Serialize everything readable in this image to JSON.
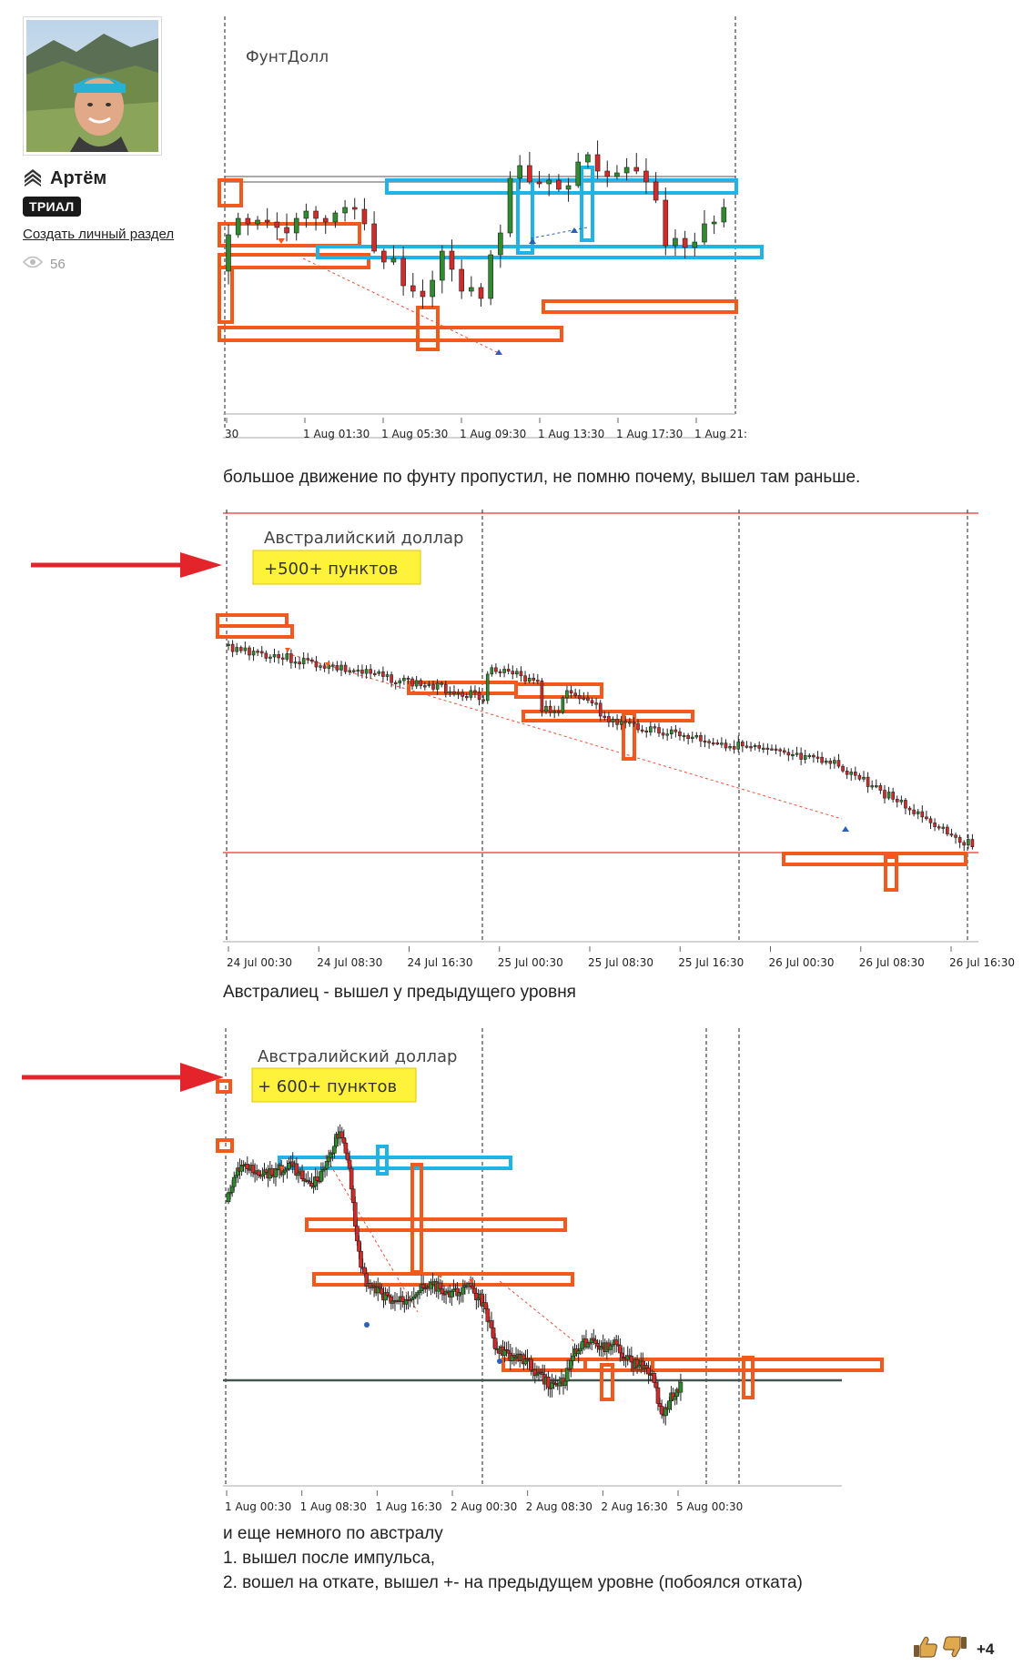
{
  "profile": {
    "name": "Артём",
    "rank": "ТРИАЛ",
    "create_section_link": "Создать личный раздел",
    "views": "56"
  },
  "charts": [
    {
      "title": "ФунтДолл",
      "highlight": "",
      "x_ticks": [
        "30",
        "1 Aug 01:30",
        "1 Aug 05:30",
        "1 Aug 09:30",
        "1 Aug 13:30",
        "1 Aug 17:30",
        "1 Aug 21:"
      ]
    },
    {
      "title": "Австралийский доллар",
      "highlight": "+500+ пунктов",
      "x_ticks": [
        "24 Jul 00:30",
        "24 Jul 08:30",
        "24 Jul 16:30",
        "25 Jul 00:30",
        "25 Jul 08:30",
        "25 Jul 16:30",
        "26 Jul 00:30",
        "26 Jul 08:30",
        "26 Jul 16:30"
      ]
    },
    {
      "title": "Австралийский доллар",
      "highlight": "+ 600+ пунктов",
      "x_ticks": [
        "1 Aug 00:30",
        "1 Aug 08:30",
        "1 Aug 16:30",
        "2 Aug 00:30",
        "2 Aug 08:30",
        "2 Aug 16:30",
        "5 Aug 00:30"
      ]
    }
  ],
  "captions": {
    "gbp": "большое движение по фунту пропустил, не помню почему, вышел там раньше.",
    "aud1": "Австралиец - вышел у предыдущего уровня",
    "aud2_lines": [
      "и еще немного по австралу",
      "1. вышел после импульса,",
      "2. вошел на откате, вышел +- на предыдущем уровне (побоялся отката)"
    ]
  },
  "votes": {
    "score": "+4"
  },
  "colors": {
    "bull": "#2e8b2e",
    "bear": "#d42a2a",
    "zone_orange": "#f25a1d",
    "zone_blue": "#1fb3e6",
    "arrow_red": "#e3242b",
    "highlight_bg": "#fff23a"
  },
  "icons": [
    "rank-chevrons-icon",
    "eye-icon",
    "thumbs-up-icon",
    "thumbs-down-icon",
    "red-arrow-icon"
  ]
}
